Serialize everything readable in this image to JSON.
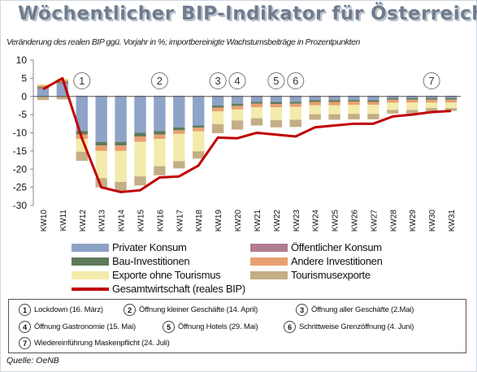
{
  "title": "Wöchentlicher BIP-Indikator für Österreich",
  "subtitle": "Veränderung des realen BIP ggü. Vorjahr in %; importbereinigte Wachstumsbeiträge in Prozentpunkten",
  "source": "Quelle: OeNB",
  "colors": {
    "privater_konsum": "#8da3c7",
    "oeffentlicher_konsum": "#b07c92",
    "bau": "#5f7a5b",
    "andere_investitionen": "#e9a070",
    "exporte": "#f3ebab",
    "tourismusexporte": "#c4ae86",
    "gesamt": "#c00000"
  },
  "chart_data": {
    "type": "bar",
    "stacked": true,
    "categories": [
      "KW10",
      "KW11",
      "KW12",
      "KW13",
      "KW14",
      "KW15",
      "KW16",
      "KW17",
      "KW18",
      "KW19",
      "KW20",
      "KW21",
      "KW22",
      "KW23",
      "KW24",
      "KW25",
      "KW26",
      "KW27",
      "KW28",
      "KW29",
      "KW30",
      "KW31"
    ],
    "ylim": [
      -30,
      10
    ],
    "yticks": [
      10,
      5,
      0,
      -5,
      -10,
      -15,
      -20,
      -25,
      -30
    ],
    "series": [
      {
        "name": "Privater Konsum",
        "key": "privater_konsum",
        "values": [
          2.0,
          3.5,
          -9.5,
          -12.5,
          -12.5,
          -10.0,
          -9.5,
          -8.5,
          -8.0,
          -2.5,
          -2.0,
          -1.5,
          -1.5,
          -1.5,
          -1.0,
          -1.0,
          -1.0,
          -1.0,
          -0.5,
          -0.5,
          -0.5,
          -0.5
        ]
      },
      {
        "name": "Öffentlicher Konsum",
        "key": "oeffentlicher_konsum",
        "values": [
          0.3,
          0.3,
          0.2,
          0.2,
          0.2,
          0.2,
          0.2,
          0.2,
          0.2,
          0.2,
          0.2,
          0.2,
          0.2,
          0.2,
          0.2,
          0.2,
          0.2,
          0.2,
          0.2,
          0.2,
          0.2,
          0.2
        ]
      },
      {
        "name": "Bau-Investitionen",
        "key": "bau",
        "values": [
          0.3,
          0.3,
          -1.0,
          -1.0,
          -1.0,
          -1.0,
          -1.0,
          -0.8,
          -0.6,
          -0.6,
          -0.6,
          -0.5,
          -0.6,
          -0.5,
          -0.5,
          -0.5,
          -0.4,
          -0.5,
          -0.4,
          -0.4,
          -0.4,
          -0.4
        ]
      },
      {
        "name": "Andere Investitionen",
        "key": "andere_investitionen",
        "values": [
          0.5,
          0.5,
          -1.2,
          -1.5,
          -1.5,
          -1.5,
          -1.2,
          -1.0,
          -1.0,
          -1.0,
          -1.0,
          -1.0,
          -0.9,
          -0.9,
          -0.9,
          -0.9,
          -0.9,
          -0.8,
          -0.8,
          -0.8,
          -0.8,
          -0.8
        ]
      },
      {
        "name": "Exporte ohne Tourismus",
        "key": "exporte",
        "values": [
          0.3,
          0.4,
          -3.5,
          -7.5,
          -8.5,
          -9.5,
          -7.5,
          -7.5,
          -5.5,
          -3.5,
          -3.0,
          -3.0,
          -3.5,
          -3.5,
          -2.5,
          -2.5,
          -2.5,
          -2.5,
          -2.0,
          -2.0,
          -1.5,
          -1.5
        ]
      },
      {
        "name": "Tourismusexporte",
        "key": "tourismusexporte",
        "values": [
          -1.0,
          -0.8,
          -2.5,
          -2.5,
          -2.5,
          -2.5,
          -2.5,
          -2.0,
          -2.0,
          -2.5,
          -2.5,
          -2.0,
          -2.0,
          -2.0,
          -1.5,
          -1.5,
          -1.5,
          -1.5,
          -1.0,
          -1.0,
          -1.0,
          -0.8
        ]
      }
    ],
    "line": {
      "name": "Gesamtwirtschaft (reales BIP)",
      "key": "gesamt",
      "values": [
        2.0,
        5.0,
        -11.5,
        -25.0,
        -26.3,
        -25.8,
        -22.3,
        -22.0,
        -19.0,
        -11.3,
        -11.5,
        -10.0,
        -10.5,
        -11.0,
        -8.5,
        -8.0,
        -7.5,
        -7.5,
        -5.5,
        -5.0,
        -4.3,
        -4.0
      ]
    },
    "markers": [
      {
        "label": "1",
        "category": "KW12"
      },
      {
        "label": "2",
        "category": "KW16"
      },
      {
        "label": "3",
        "category": "KW19"
      },
      {
        "label": "4",
        "category": "KW20"
      },
      {
        "label": "5",
        "category": "KW22"
      },
      {
        "label": "6",
        "category": "KW23"
      },
      {
        "label": "7",
        "category": "KW30"
      }
    ],
    "grid": false
  },
  "legend": [
    {
      "label": "Privater Konsum",
      "key": "privater_konsum"
    },
    {
      "label": "Öffentlicher Konsum",
      "key": "oeffentlicher_konsum"
    },
    {
      "label": "Bau-Investitionen",
      "key": "bau"
    },
    {
      "label": "Andere Investitionen",
      "key": "andere_investitionen"
    },
    {
      "label": "Exporte ohne Tourismus",
      "key": "exporte"
    },
    {
      "label": "Tourismusexporte",
      "key": "tourismusexporte"
    },
    {
      "label": "Gesamtwirtschaft (reales BIP)",
      "key": "gesamt"
    }
  ],
  "events": [
    {
      "num": "1",
      "text": "Lockdown (16. März)"
    },
    {
      "num": "2",
      "text": "Öffnung kleiner Geschäfte (14. April)"
    },
    {
      "num": "3",
      "text": "Öffnung aller Geschäfte (2.Mai)"
    },
    {
      "num": "4",
      "text": "Öffnung Gastronomie (15. Mai)"
    },
    {
      "num": "5",
      "text": "Öffnung Hotels (29. Mai)"
    },
    {
      "num": "6",
      "text": "Schrittweise Grenzöffnung (4. Juni)"
    },
    {
      "num": "7",
      "text": "Wiedereinführung Maskenpflicht (24. Juli)"
    }
  ]
}
